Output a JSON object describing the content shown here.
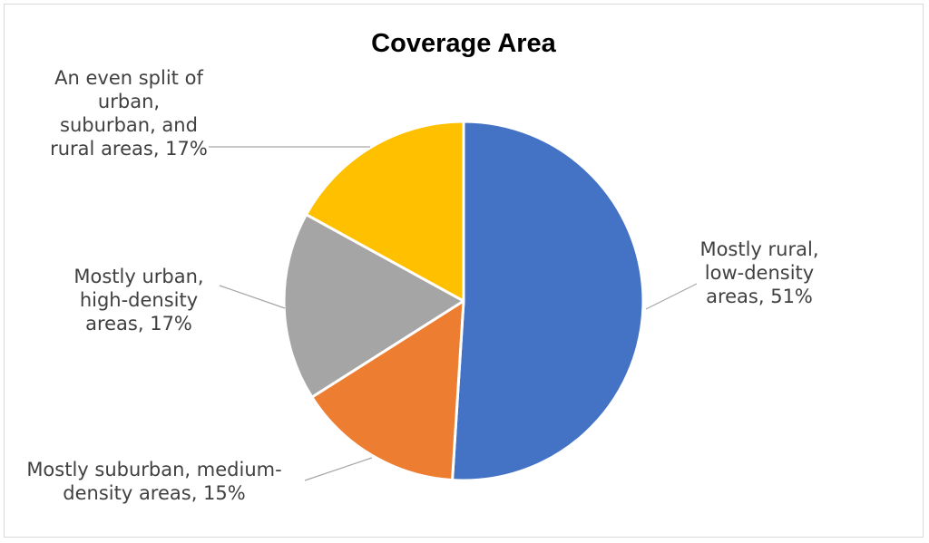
{
  "chart_data": {
    "type": "pie",
    "title": "Coverage Area",
    "slices": [
      {
        "label": "Mostly rural, low-density areas",
        "value": 51,
        "color": "#4472c4",
        "label_lines": [
          "Mostly rural,",
          "low-density",
          "areas, 51%"
        ]
      },
      {
        "label": "Mostly suburban, medium-density areas",
        "value": 15,
        "color": "#ed7d31",
        "label_lines": [
          "Mostly suburban, medium-",
          "density areas, 15%"
        ]
      },
      {
        "label": "Mostly urban, high-density areas",
        "value": 17,
        "color": "#a5a5a5",
        "label_lines": [
          "Mostly urban,",
          "high-density",
          "areas, 17%"
        ]
      },
      {
        "label": "An even split of urban, suburban, and rural areas",
        "value": 17,
        "color": "#ffc000",
        "label_lines": [
          "An even split of",
          "urban,",
          "suburban, and",
          "rural areas, 17%"
        ]
      }
    ],
    "legend": "none"
  }
}
